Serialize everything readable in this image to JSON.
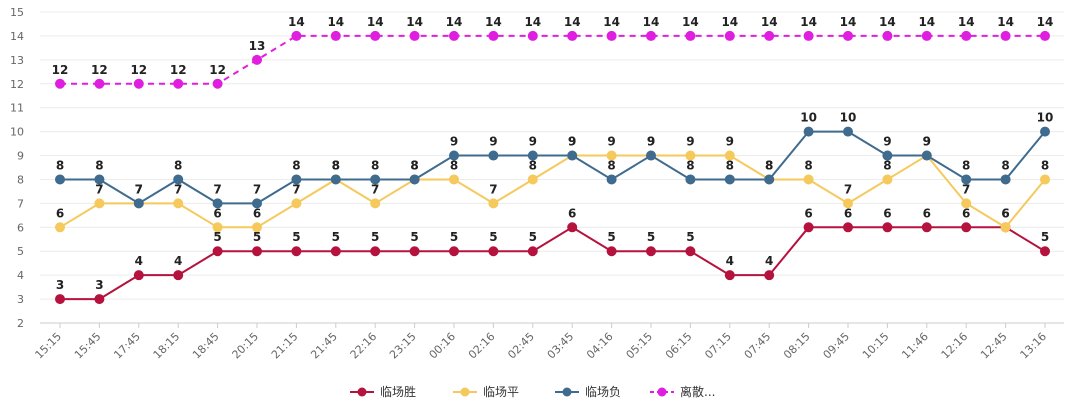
{
  "chart_data": {
    "type": "line",
    "x": [
      "15:15",
      "15:45",
      "17:45",
      "18:15",
      "18:45",
      "20:15",
      "21:15",
      "21:45",
      "22:16",
      "23:15",
      "00:16",
      "02:16",
      "02:45",
      "03:45",
      "04:16",
      "05:15",
      "06:15",
      "07:15",
      "07:45",
      "08:15",
      "09:45",
      "10:15",
      "11:46",
      "12:16",
      "12:45",
      "13:16"
    ],
    "ylim": [
      2,
      15
    ],
    "yticks": [
      2,
      3,
      4,
      5,
      6,
      7,
      8,
      9,
      10,
      11,
      12,
      13,
      14,
      15
    ],
    "grid": true,
    "legend_position": "bottom",
    "series": [
      {
        "name": "临场胜",
        "color": "#b5123e",
        "dashed": false,
        "values": [
          3,
          3,
          4,
          4,
          5,
          5,
          5,
          5,
          5,
          5,
          5,
          5,
          5,
          6,
          5,
          5,
          5,
          4,
          4,
          6,
          6,
          6,
          6,
          6,
          6,
          5
        ]
      },
      {
        "name": "临场平",
        "color": "#f5c95b",
        "dashed": false,
        "values": [
          6,
          7,
          7,
          7,
          6,
          6,
          7,
          8,
          7,
          8,
          8,
          7,
          8,
          9,
          9,
          9,
          9,
          9,
          8,
          8,
          7,
          8,
          9,
          7,
          6,
          8
        ]
      },
      {
        "name": "临场负",
        "color": "#3f6b8f",
        "dashed": false,
        "values": [
          8,
          8,
          7,
          8,
          7,
          7,
          8,
          8,
          8,
          8,
          9,
          9,
          9,
          9,
          8,
          9,
          8,
          8,
          8,
          10,
          10,
          9,
          9,
          8,
          8,
          10
        ]
      },
      {
        "name": "离散...",
        "color": "#e01ee0",
        "dashed": true,
        "values": [
          12,
          12,
          12,
          12,
          12,
          13,
          14,
          14,
          14,
          14,
          14,
          14,
          14,
          14,
          14,
          14,
          14,
          14,
          14,
          14,
          14,
          14,
          14,
          14,
          14,
          14
        ]
      }
    ]
  }
}
